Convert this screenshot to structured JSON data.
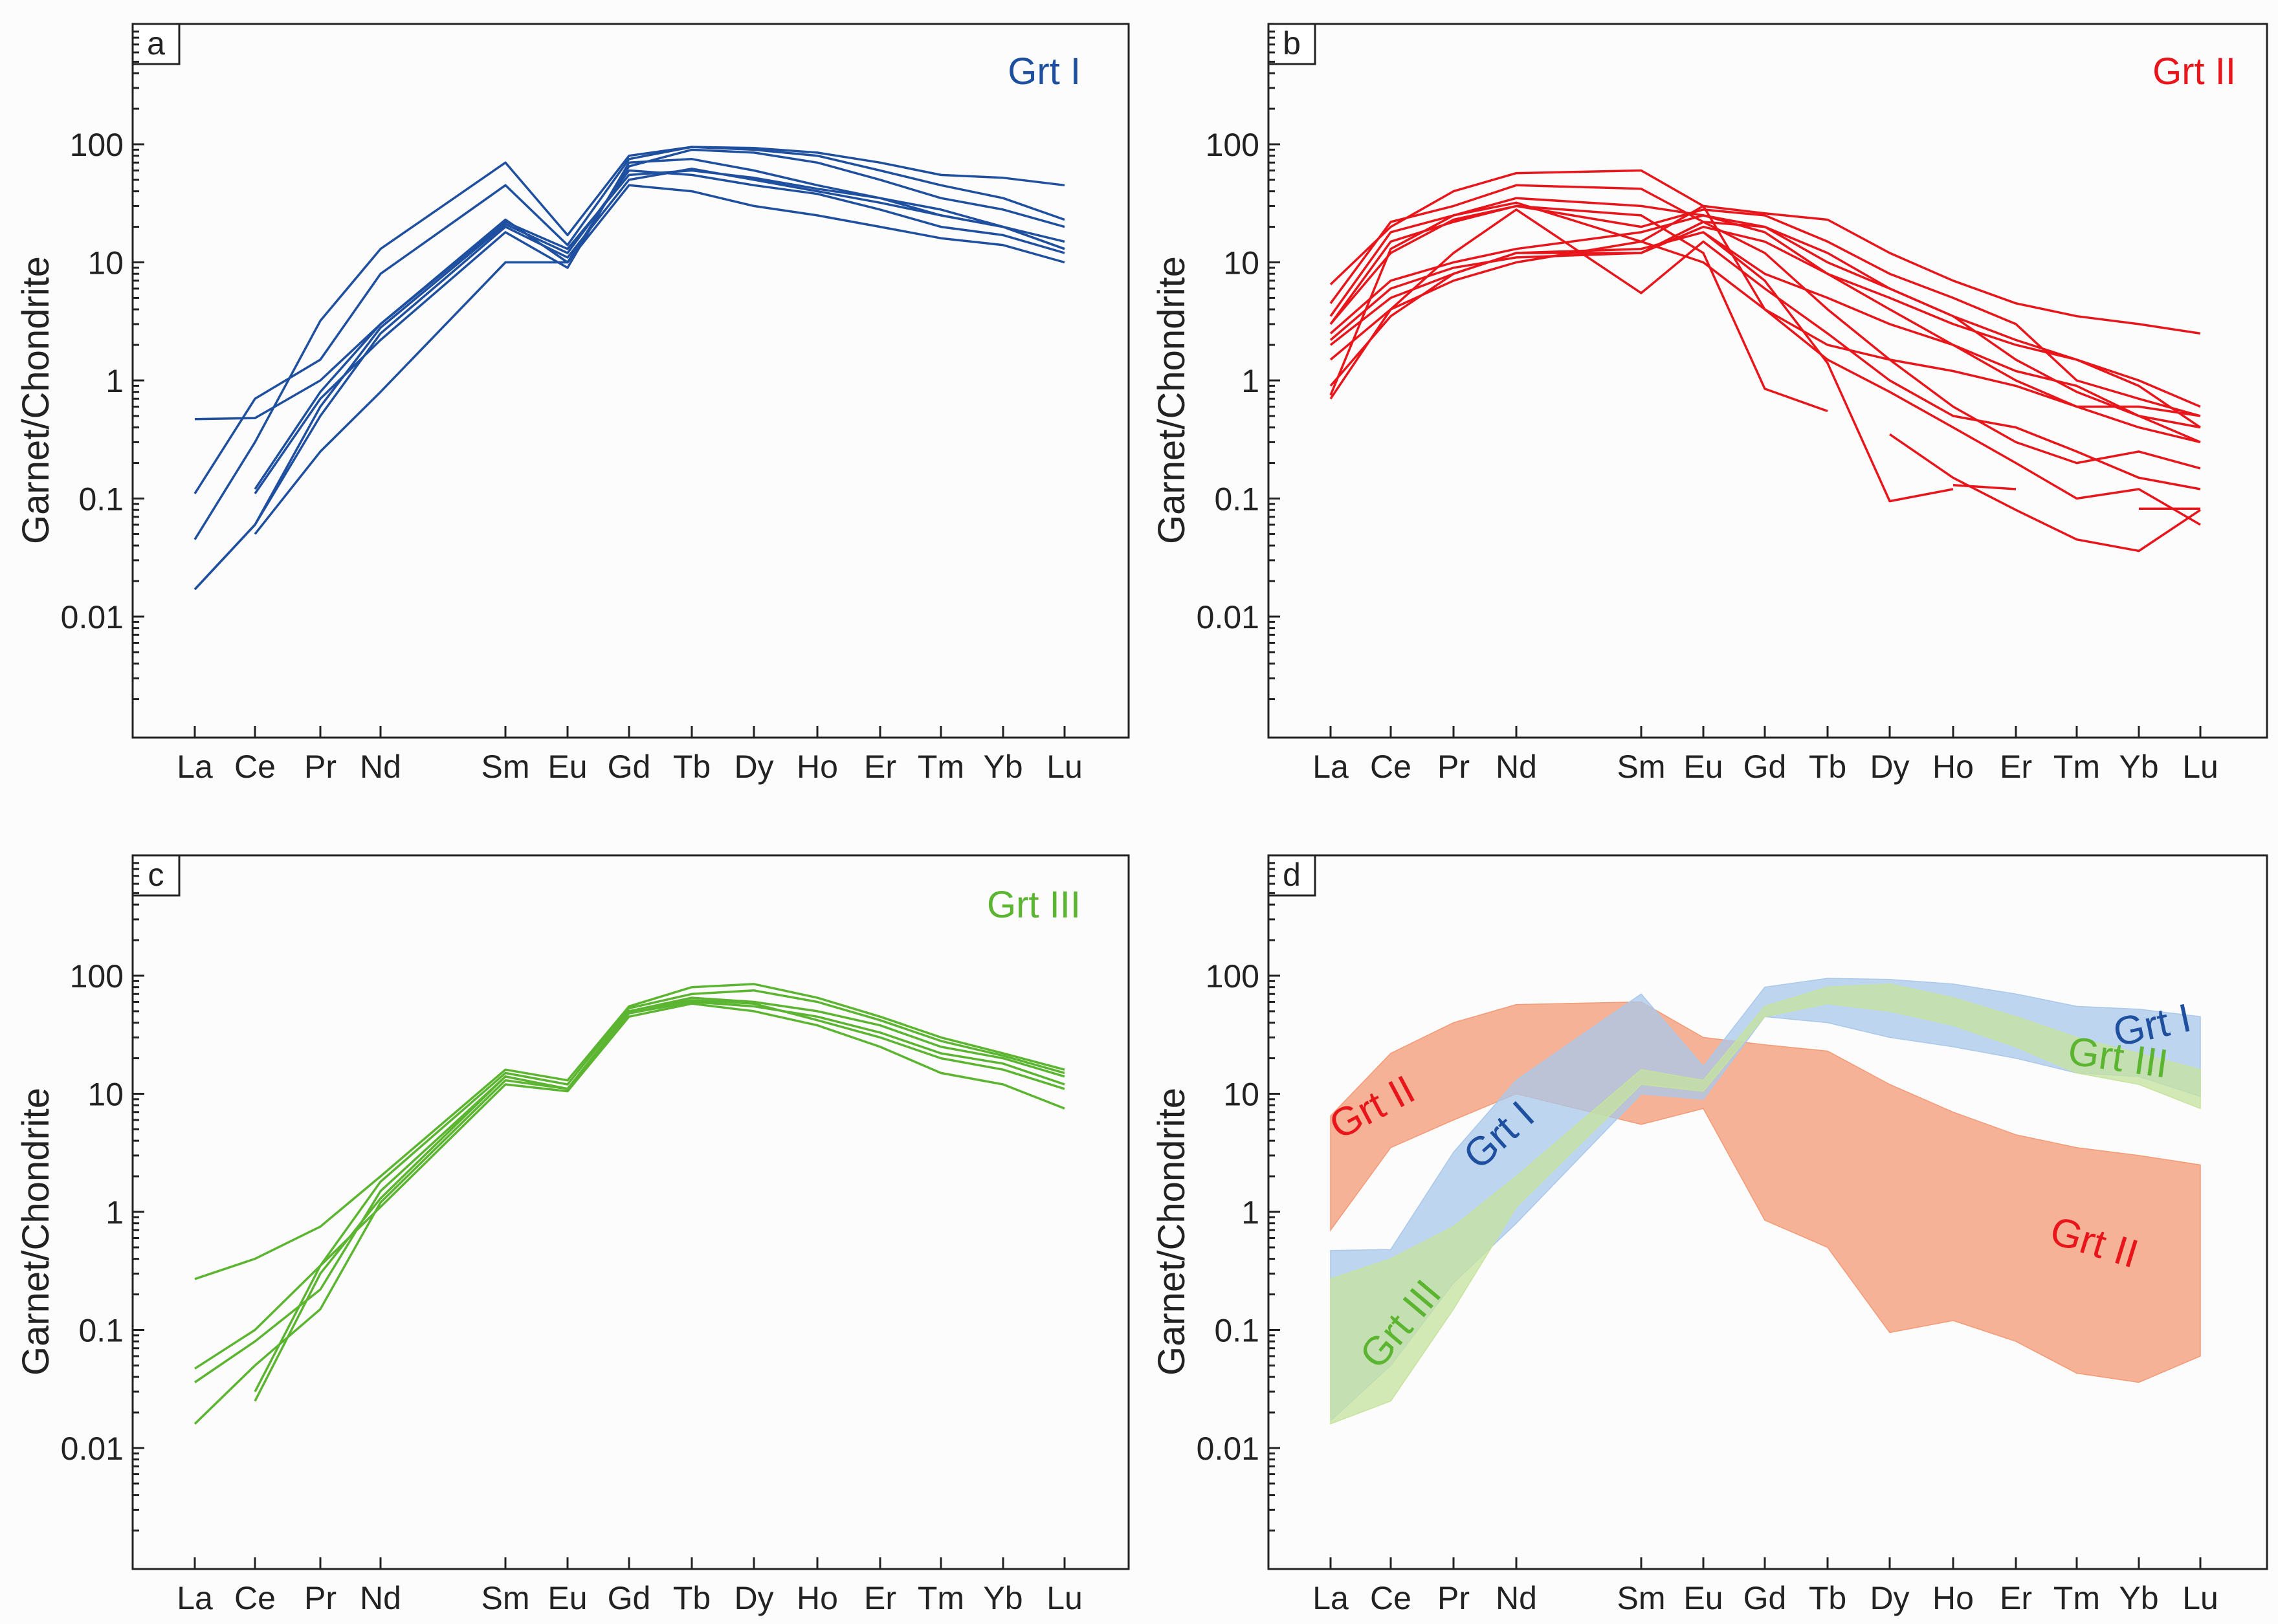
{
  "colors": {
    "grt1": "#1f4f9f",
    "grt2": "#e8151b",
    "grt3": "#5cb531",
    "grt1_fill": "#a9c8eb",
    "grt2_fill": "#f39a76",
    "grt3_fill": "#c6e39d"
  },
  "x_labels": [
    "La",
    "Ce",
    "Pr",
    "Nd",
    "Sm",
    "Eu",
    "Gd",
    "Tb",
    "Dy",
    "Ho",
    "Er",
    "Tm",
    "Yb",
    "Lu"
  ],
  "y_tick_labels": [
    "0.01",
    "0.1",
    "1",
    "10",
    "100"
  ],
  "chart_data": [
    {
      "type": "line",
      "panel_label": "a",
      "title": "Grt I",
      "color_key": "grt1",
      "ylabel": "Garnet/Chondrite",
      "yscale": "log",
      "ylim": [
        0.001,
        1000
      ],
      "series": [
        {
          "name": "s1",
          "values": [
            0.017,
            0.06,
            0.5,
            2.5,
            20,
            11,
            50,
            62,
            50,
            40,
            32,
            25,
            20,
            13
          ]
        },
        {
          "name": "s2",
          "values": [
            0.045,
            0.3,
            3.2,
            13,
            70,
            17,
            80,
            95,
            93,
            85,
            70,
            55,
            52,
            45
          ]
        },
        {
          "name": "s3",
          "values": [
            0.11,
            0.7,
            1.5,
            8,
            45,
            14,
            75,
            95,
            90,
            80,
            60,
            45,
            35,
            23
          ]
        },
        {
          "name": "s4",
          "values": [
            0.47,
            0.48,
            1,
            3,
            23,
            10,
            65,
            90,
            85,
            70,
            50,
            35,
            28,
            20
          ]
        },
        {
          "name": "s5",
          "values": [
            null,
            0.12,
            0.8,
            3,
            22,
            13,
            55,
            60,
            52,
            42,
            35,
            25,
            20,
            13
          ]
        },
        {
          "name": "s6",
          "values": [
            null,
            0.11,
            0.7,
            2.2,
            18,
            9,
            70,
            75,
            60,
            45,
            35,
            28,
            20,
            15
          ]
        },
        {
          "name": "s7",
          "values": [
            null,
            0.05,
            0.25,
            0.8,
            10,
            10,
            45,
            40,
            30,
            25,
            20,
            16,
            14,
            10
          ]
        },
        {
          "name": "s8",
          "values": [
            0.017,
            0.06,
            0.6,
            2.8,
            21,
            12,
            60,
            55,
            45,
            38,
            28,
            20,
            17,
            12
          ]
        }
      ]
    },
    {
      "type": "line",
      "panel_label": "b",
      "title": "Grt II",
      "color_key": "grt2",
      "ylabel": "Garnet/Chondrite",
      "yscale": "log",
      "ylim": [
        0.001,
        1000
      ],
      "series": [
        {
          "name": "s1",
          "values": [
            6.5,
            20,
            40,
            57,
            60,
            30,
            26,
            23,
            12,
            7,
            4.5,
            3.5,
            3,
            2.5
          ]
        },
        {
          "name": "s2",
          "values": [
            4.5,
            22,
            30,
            45,
            42,
            22,
            20,
            10,
            6,
            3.5,
            2.2,
            1.5,
            1,
            0.6
          ]
        },
        {
          "name": "s3",
          "values": [
            3.5,
            18,
            25,
            35,
            30,
            25,
            18,
            8,
            5,
            3,
            2,
            1.5,
            0.9,
            0.4
          ]
        },
        {
          "name": "s4",
          "values": [
            3,
            15,
            22,
            30,
            20,
            28,
            25,
            15,
            8,
            5,
            3,
            1,
            0.7,
            0.5
          ]
        },
        {
          "name": "s5",
          "values": [
            2.5,
            7,
            10,
            13,
            18,
            25,
            20,
            12,
            6,
            3.5,
            1.5,
            0.8,
            0.5,
            0.4
          ]
        },
        {
          "name": "s6",
          "values": [
            2.2,
            6,
            9,
            11,
            12,
            20,
            15,
            8,
            4,
            2,
            1,
            0.6,
            0.6,
            0.5
          ]
        },
        {
          "name": "s7",
          "values": [
            2,
            5,
            8,
            12,
            13,
            18,
            8,
            5,
            3,
            2,
            1.2,
            0.9,
            0.5,
            0.3
          ]
        },
        {
          "name": "s8",
          "values": [
            1.5,
            4,
            7,
            10,
            15,
            10,
            4,
            2,
            1.5,
            1.2,
            0.9,
            0.6,
            0.4,
            0.3
          ]
        },
        {
          "name": "s9",
          "values": [
            0.9,
            3.5,
            8,
            12,
            12,
            22,
            12,
            4,
            1.5,
            0.6,
            0.3,
            0.2,
            0.25,
            0.18
          ]
        },
        {
          "name": "s10",
          "values": [
            0.7,
            4,
            12,
            28,
            5.5,
            15,
            6,
            2.5,
            1,
            0.5,
            0.4,
            0.25,
            0.15,
            0.12
          ]
        },
        {
          "name": "s11",
          "values": [
            0.75,
            13,
            25,
            32,
            15,
            30,
            4,
            1.5,
            0.8,
            0.4,
            0.2,
            0.1,
            0.12,
            0.06
          ]
        },
        {
          "name": "s12",
          "values": [
            3,
            12,
            23,
            30,
            25,
            12,
            0.85,
            0.55,
            null,
            null,
            null,
            null,
            null,
            null
          ]
        },
        {
          "name": "s13",
          "values": [
            null,
            null,
            null,
            null,
            null,
            18,
            7,
            1.4,
            0.095,
            0.12,
            null,
            null,
            null,
            null
          ]
        },
        {
          "name": "s14",
          "values": [
            null,
            null,
            null,
            null,
            null,
            null,
            null,
            null,
            null,
            0.13,
            0.12,
            null,
            null,
            null
          ]
        },
        {
          "name": "s15",
          "values": [
            null,
            null,
            null,
            null,
            null,
            null,
            null,
            null,
            0.35,
            0.15,
            0.08,
            0.045,
            0.036,
            0.08
          ]
        },
        {
          "name": "s16",
          "values": [
            null,
            null,
            null,
            null,
            null,
            null,
            null,
            null,
            null,
            null,
            null,
            null,
            0.082,
            0.082
          ]
        }
      ]
    },
    {
      "type": "line",
      "panel_label": "c",
      "title": "Grt III",
      "color_key": "grt3",
      "ylabel": "Garnet/Chondrite",
      "yscale": "log",
      "ylim": [
        0.001,
        1000
      ],
      "series": [
        {
          "name": "s1",
          "values": [
            0.27,
            0.4,
            0.75,
            2,
            16,
            13,
            55,
            80,
            85,
            65,
            45,
            30,
            22,
            16
          ]
        },
        {
          "name": "s2",
          "values": [
            0.047,
            0.1,
            0.35,
            1.8,
            15,
            12,
            53,
            70,
            75,
            60,
            42,
            28,
            21,
            15
          ]
        },
        {
          "name": "s3",
          "values": [
            0.036,
            0.08,
            0.22,
            1.5,
            14,
            11,
            50,
            65,
            60,
            50,
            38,
            25,
            20,
            14
          ]
        },
        {
          "name": "s4",
          "values": [
            0.016,
            0.05,
            0.15,
            1.2,
            13,
            11,
            48,
            60,
            55,
            45,
            33,
            22,
            18,
            12
          ]
        },
        {
          "name": "s5",
          "values": [
            null,
            0.025,
            0.3,
            1.3,
            14,
            11,
            50,
            62,
            58,
            42,
            30,
            20,
            16,
            11
          ]
        },
        {
          "name": "s6",
          "values": [
            null,
            0.03,
            0.35,
            1.1,
            12,
            10.5,
            45,
            58,
            50,
            38,
            25,
            15,
            12,
            7.5
          ]
        }
      ]
    },
    {
      "type": "area",
      "panel_label": "d",
      "title": "",
      "ylabel": "Garnet/Chondrite",
      "yscale": "log",
      "ylim": [
        0.001,
        1000
      ],
      "series": [
        {
          "name": "Grt II",
          "color_key": "grt2_fill",
          "upper": [
            6.5,
            22,
            40,
            57,
            60,
            30,
            26,
            23,
            12,
            7,
            4.5,
            3.5,
            3,
            2.5
          ],
          "lower": [
            0.7,
            3.5,
            6,
            10,
            5.5,
            7.5,
            0.85,
            0.5,
            0.095,
            0.12,
            0.08,
            0.043,
            0.036,
            0.06
          ]
        },
        {
          "name": "Grt I",
          "color_key": "grt1_fill",
          "upper": [
            0.47,
            0.48,
            3.2,
            13,
            70,
            17,
            80,
            95,
            93,
            85,
            70,
            55,
            52,
            45
          ],
          "lower": [
            0.017,
            0.05,
            0.25,
            0.8,
            10,
            9,
            45,
            40,
            30,
            25,
            20,
            15,
            14,
            9.5
          ]
        },
        {
          "name": "Grt III",
          "color_key": "grt3_fill",
          "upper": [
            0.27,
            0.4,
            0.75,
            2,
            16,
            13,
            55,
            80,
            85,
            65,
            45,
            30,
            22,
            16
          ],
          "lower": [
            0.016,
            0.025,
            0.15,
            1.1,
            12,
            10.5,
            45,
            58,
            50,
            38,
            25,
            15,
            12,
            7.5
          ]
        }
      ],
      "annotations": [
        {
          "text": "Grt II",
          "color_key": "grt2"
        },
        {
          "text": "Grt I",
          "color_key": "grt1"
        },
        {
          "text": "Grt III",
          "color_key": "grt3"
        },
        {
          "text": "Grt II",
          "color_key": "grt2"
        },
        {
          "text": "Grt I",
          "color_key": "grt1"
        },
        {
          "text": "Grt III",
          "color_key": "grt3"
        }
      ]
    }
  ]
}
